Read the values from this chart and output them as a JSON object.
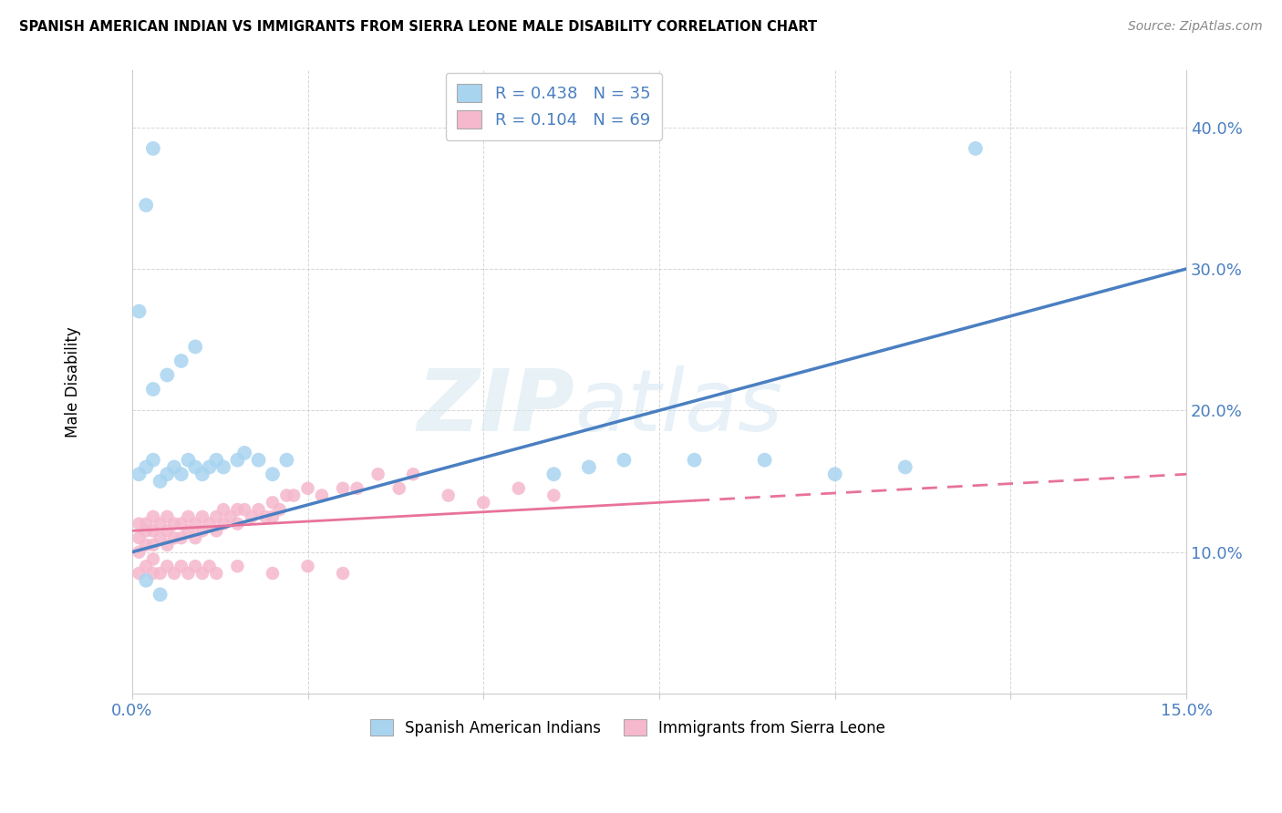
{
  "title": "SPANISH AMERICAN INDIAN VS IMMIGRANTS FROM SIERRA LEONE MALE DISABILITY CORRELATION CHART",
  "source": "Source: ZipAtlas.com",
  "ylabel": "Male Disability",
  "xlabel": "",
  "xlim": [
    0.0,
    0.15
  ],
  "ylim": [
    0.0,
    0.44
  ],
  "xticks": [
    0.0,
    0.025,
    0.05,
    0.075,
    0.1,
    0.125,
    0.15
  ],
  "yticks": [
    0.0,
    0.1,
    0.2,
    0.3,
    0.4
  ],
  "blue_R": 0.438,
  "blue_N": 35,
  "pink_R": 0.104,
  "pink_N": 69,
  "blue_color": "#a8d4f0",
  "pink_color": "#f5b8cc",
  "blue_line_color": "#4a7fc1",
  "pink_line_color": "#e8729a",
  "legend1_label": "Spanish American Indians",
  "legend2_label": "Immigrants from Sierra Leone",
  "watermark_zip": "ZIP",
  "watermark_atlas": "atlas",
  "blue_scatter_x": [
    0.001,
    0.002,
    0.003,
    0.004,
    0.005,
    0.006,
    0.007,
    0.008,
    0.009,
    0.01,
    0.011,
    0.012,
    0.013,
    0.015,
    0.016,
    0.018,
    0.02,
    0.022,
    0.003,
    0.005,
    0.007,
    0.009,
    0.001,
    0.002,
    0.003,
    0.06,
    0.065,
    0.07,
    0.08,
    0.09,
    0.1,
    0.11,
    0.12,
    0.002,
    0.004
  ],
  "blue_scatter_y": [
    0.155,
    0.16,
    0.165,
    0.15,
    0.155,
    0.16,
    0.155,
    0.165,
    0.16,
    0.155,
    0.16,
    0.165,
    0.16,
    0.165,
    0.17,
    0.165,
    0.155,
    0.165,
    0.215,
    0.225,
    0.235,
    0.245,
    0.27,
    0.345,
    0.385,
    0.155,
    0.16,
    0.165,
    0.165,
    0.165,
    0.155,
    0.16,
    0.385,
    0.08,
    0.07
  ],
  "pink_scatter_x": [
    0.001,
    0.001,
    0.001,
    0.002,
    0.002,
    0.002,
    0.003,
    0.003,
    0.003,
    0.004,
    0.004,
    0.005,
    0.005,
    0.005,
    0.006,
    0.006,
    0.007,
    0.007,
    0.008,
    0.008,
    0.009,
    0.009,
    0.01,
    0.01,
    0.011,
    0.012,
    0.012,
    0.013,
    0.013,
    0.014,
    0.015,
    0.015,
    0.016,
    0.017,
    0.018,
    0.019,
    0.02,
    0.02,
    0.021,
    0.022,
    0.023,
    0.025,
    0.027,
    0.03,
    0.032,
    0.035,
    0.038,
    0.04,
    0.045,
    0.05,
    0.055,
    0.06,
    0.001,
    0.002,
    0.003,
    0.003,
    0.004,
    0.005,
    0.006,
    0.007,
    0.008,
    0.009,
    0.01,
    0.011,
    0.012,
    0.015,
    0.02,
    0.025,
    0.03
  ],
  "pink_scatter_y": [
    0.12,
    0.11,
    0.1,
    0.12,
    0.115,
    0.105,
    0.125,
    0.115,
    0.105,
    0.12,
    0.11,
    0.125,
    0.115,
    0.105,
    0.12,
    0.11,
    0.12,
    0.11,
    0.125,
    0.115,
    0.12,
    0.11,
    0.125,
    0.115,
    0.12,
    0.125,
    0.115,
    0.13,
    0.12,
    0.125,
    0.13,
    0.12,
    0.13,
    0.125,
    0.13,
    0.125,
    0.135,
    0.125,
    0.13,
    0.14,
    0.14,
    0.145,
    0.14,
    0.145,
    0.145,
    0.155,
    0.145,
    0.155,
    0.14,
    0.135,
    0.145,
    0.14,
    0.085,
    0.09,
    0.085,
    0.095,
    0.085,
    0.09,
    0.085,
    0.09,
    0.085,
    0.09,
    0.085,
    0.09,
    0.085,
    0.09,
    0.085,
    0.09,
    0.085
  ],
  "blue_line_x0": 0.0,
  "blue_line_y0": 0.1,
  "blue_line_x1": 0.15,
  "blue_line_y1": 0.3,
  "pink_line_x0": 0.0,
  "pink_line_y0": 0.115,
  "pink_line_x1": 0.15,
  "pink_line_y1": 0.155
}
